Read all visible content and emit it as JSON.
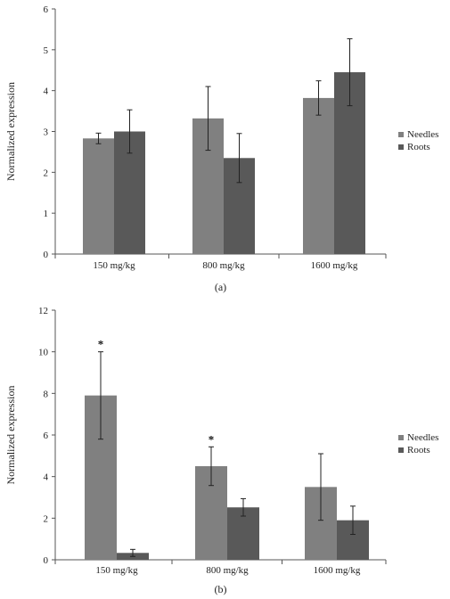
{
  "chart_data": [
    {
      "type": "bar",
      "caption": "(a)",
      "ylabel": "Normalized expression",
      "xlabel": "",
      "categories": [
        "150 mg/kg",
        "800 mg/kg",
        "1600 mg/kg"
      ],
      "ylim": [
        0,
        6
      ],
      "yticks": [
        "0",
        "1",
        "2",
        "3",
        "4",
        "5",
        "6"
      ],
      "legend_position": "right",
      "grid": false,
      "series": [
        {
          "name": "Needles",
          "color": "#808080",
          "values": [
            2.83,
            3.32,
            3.82
          ],
          "errors": [
            0.13,
            0.78,
            0.42
          ],
          "annotations": [
            "",
            "",
            ""
          ]
        },
        {
          "name": "Roots",
          "color": "#595959",
          "values": [
            3.0,
            2.35,
            4.45
          ],
          "errors": [
            0.53,
            0.6,
            0.82
          ],
          "annotations": [
            "",
            "",
            ""
          ]
        }
      ]
    },
    {
      "type": "bar",
      "caption": "(b)",
      "ylabel": "Normalized expression",
      "xlabel": "",
      "categories": [
        "150 mg/kg",
        "800 mg/kg",
        "1600 mg/kg"
      ],
      "ylim": [
        0,
        12
      ],
      "yticks": [
        "0",
        "2",
        "4",
        "6",
        "8",
        "10",
        "12"
      ],
      "legend_position": "right",
      "grid": false,
      "series": [
        {
          "name": "Needles",
          "color": "#808080",
          "values": [
            7.9,
            4.5,
            3.5
          ],
          "errors": [
            2.1,
            0.93,
            1.6
          ],
          "annotations": [
            "*",
            "*",
            ""
          ]
        },
        {
          "name": "Roots",
          "color": "#595959",
          "values": [
            0.33,
            2.52,
            1.9
          ],
          "errors": [
            0.17,
            0.42,
            0.68
          ],
          "annotations": [
            "",
            "",
            ""
          ]
        }
      ]
    }
  ]
}
